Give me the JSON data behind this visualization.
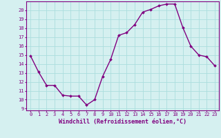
{
  "x": [
    0,
    1,
    2,
    3,
    4,
    5,
    6,
    7,
    8,
    9,
    10,
    11,
    12,
    13,
    14,
    15,
    16,
    17,
    18,
    19,
    20,
    21,
    22,
    23
  ],
  "y": [
    14.9,
    13.1,
    11.6,
    11.6,
    10.5,
    10.4,
    10.4,
    9.4,
    10.0,
    12.6,
    14.5,
    17.2,
    17.5,
    18.4,
    19.8,
    20.1,
    20.5,
    20.7,
    20.7,
    18.1,
    16.0,
    15.0,
    14.8,
    13.8
  ],
  "line_color": "#800080",
  "marker": "D",
  "marker_size": 2.0,
  "bg_color": "#d5f0f0",
  "grid_color": "#aadddd",
  "xlabel": "Windchill (Refroidissement éolien,°C)",
  "xlabel_fontsize": 6.0,
  "ylim_min": 8.8,
  "ylim_max": 21.0,
  "xlim_min": -0.5,
  "xlim_max": 23.5,
  "yticks": [
    9,
    10,
    11,
    12,
    13,
    14,
    15,
    16,
    17,
    18,
    19,
    20
  ],
  "xticks": [
    0,
    1,
    2,
    3,
    4,
    5,
    6,
    7,
    8,
    9,
    10,
    11,
    12,
    13,
    14,
    15,
    16,
    17,
    18,
    19,
    20,
    21,
    22,
    23
  ],
  "tick_fontsize": 5.0,
  "line_width": 1.0,
  "spine_color": "#800080"
}
